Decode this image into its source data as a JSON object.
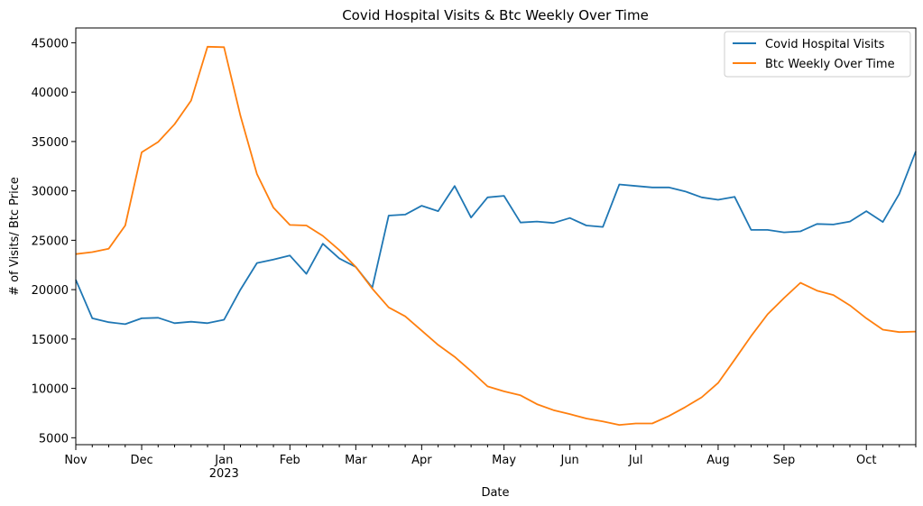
{
  "chart_data": {
    "type": "line",
    "title": "Covid Hospital Visits & Btc Weekly Over Time",
    "xlabel": "Date",
    "ylabel": "# of Visits/ Btc Price",
    "ylim": [
      4300,
      46500
    ],
    "xlim_weeks": [
      0,
      51
    ],
    "yticks": [
      5000,
      10000,
      15000,
      20000,
      25000,
      30000,
      35000,
      40000,
      45000
    ],
    "x_major_ticks": [
      {
        "week": 0,
        "label": "Nov"
      },
      {
        "week": 4,
        "label": "Dec"
      },
      {
        "week": 9,
        "label": "Jan",
        "sublabel": "2023"
      },
      {
        "week": 13,
        "label": "Feb"
      },
      {
        "week": 17,
        "label": "Mar"
      },
      {
        "week": 21,
        "label": "Apr"
      },
      {
        "week": 26,
        "label": "May"
      },
      {
        "week": 30,
        "label": "Jun"
      },
      {
        "week": 34,
        "label": "Jul"
      },
      {
        "week": 39,
        "label": "Aug"
      },
      {
        "week": 43,
        "label": "Sep"
      },
      {
        "week": 48,
        "label": "Oct"
      }
    ],
    "legend_position": "top-right",
    "series": [
      {
        "name": "Covid Hospital Visits",
        "color": "#1f77b4",
        "values": [
          21000,
          17100,
          16700,
          16500,
          17100,
          17150,
          16600,
          16750,
          16600,
          16950,
          20000,
          22700,
          23050,
          23450,
          21600,
          24650,
          23150,
          22300,
          20200,
          27500,
          27600,
          28500,
          27950,
          30500,
          27300,
          29350,
          29500,
          26800,
          26900,
          26750,
          27250,
          26500,
          26350,
          30650,
          30500,
          30350,
          30350,
          29950,
          29350,
          29100,
          29400,
          26050,
          26050,
          25800,
          25900,
          26650,
          26600,
          26900,
          27950,
          26850,
          29700,
          34000
        ]
      },
      {
        "name": "Btc Weekly Over Time",
        "color": "#ff7f0e",
        "values": [
          23600,
          23800,
          24150,
          26500,
          33900,
          34950,
          36750,
          39150,
          44600,
          44550,
          37600,
          31700,
          28300,
          26550,
          26500,
          25450,
          24000,
          22300,
          20100,
          18200,
          17300,
          15850,
          14400,
          13200,
          11750,
          10200,
          9700,
          9300,
          8400,
          7800,
          7400,
          6950,
          6650,
          6300,
          6450,
          6450,
          7200,
          8100,
          9100,
          10550,
          12900,
          15300,
          17500,
          19150,
          20700,
          19900,
          19450,
          18400,
          17100,
          15950,
          15700,
          15750
        ]
      }
    ]
  }
}
